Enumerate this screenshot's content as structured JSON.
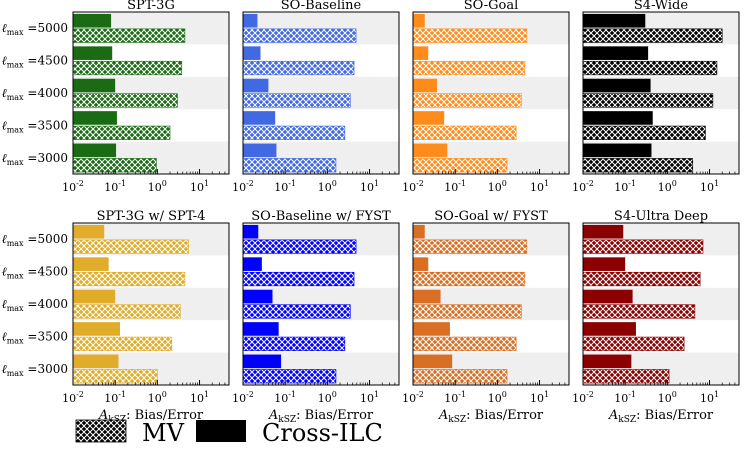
{
  "legend": {
    "mv_label": "MV",
    "ilc_label": "Cross-ILC"
  },
  "chart_data": [
    {
      "type": "bar",
      "orientation": "horizontal",
      "title": "SPT-3G",
      "color": "#1a6b14",
      "xscale": "log",
      "xlim": [
        0.01,
        50
      ],
      "xticks": [
        "10^-2",
        "10^-1",
        "10^0",
        "10^1"
      ],
      "xlabel": "",
      "categories": [
        "5000",
        "4500",
        "4000",
        "3500",
        "3000"
      ],
      "category_prefix": "ℓ",
      "category_sub": "max",
      "series": [
        {
          "name": "Cross-ILC",
          "values": [
            0.08,
            0.085,
            0.1,
            0.11,
            0.105
          ]
        },
        {
          "name": "MV",
          "values": [
            4.5,
            3.8,
            3.0,
            2.0,
            0.95
          ]
        }
      ]
    },
    {
      "type": "bar",
      "orientation": "horizontal",
      "title": "SO-Baseline",
      "color": "#4169e1",
      "xscale": "log",
      "xlim": [
        0.01,
        50
      ],
      "xticks": [
        "10^-2",
        "10^-1",
        "10^0",
        "10^1"
      ],
      "xlabel": "",
      "categories": [
        "5000",
        "4500",
        "4000",
        "3500",
        "3000"
      ],
      "series": [
        {
          "name": "Cross-ILC",
          "values": [
            0.022,
            0.026,
            0.04,
            0.058,
            0.062
          ]
        },
        {
          "name": "MV",
          "values": [
            4.8,
            4.3,
            3.5,
            2.6,
            1.6
          ]
        }
      ]
    },
    {
      "type": "bar",
      "orientation": "horizontal",
      "title": "SO-Goal",
      "color": "#ff8c1a",
      "xscale": "log",
      "xlim": [
        0.01,
        50
      ],
      "xticks": [
        "10^-2",
        "10^-1",
        "10^0",
        "10^1"
      ],
      "xlabel": "",
      "categories": [
        "5000",
        "4500",
        "4000",
        "3500",
        "3000"
      ],
      "series": [
        {
          "name": "Cross-ILC",
          "values": [
            0.019,
            0.023,
            0.037,
            0.055,
            0.065
          ]
        },
        {
          "name": "MV",
          "values": [
            5.0,
            4.5,
            3.7,
            2.8,
            1.7
          ]
        }
      ]
    },
    {
      "type": "bar",
      "orientation": "horizontal",
      "title": "S4-Wide",
      "color": "#000000",
      "xscale": "log",
      "xlim": [
        0.01,
        50
      ],
      "xticks": [
        "10^-2",
        "10^-1",
        "10^0",
        "10^1"
      ],
      "xlabel": "",
      "categories": [
        "5000",
        "4500",
        "4000",
        "3500",
        "3000"
      ],
      "series": [
        {
          "name": "Cross-ILC",
          "values": [
            0.3,
            0.35,
            0.4,
            0.45,
            0.42
          ]
        },
        {
          "name": "MV",
          "values": [
            20.0,
            15.0,
            12.0,
            8.0,
            4.0
          ]
        }
      ]
    },
    {
      "type": "bar",
      "orientation": "horizontal",
      "title": "SPT-3G w/ SPT-4",
      "color": "#e0ac2a",
      "xscale": "log",
      "xlim": [
        0.01,
        50
      ],
      "xticks": [
        "10^-2",
        "10^-1",
        "10^0",
        "10^1"
      ],
      "xlabel": "A_kSZ: Bias/Error",
      "categories": [
        "5000",
        "4500",
        "4000",
        "3500",
        "3000"
      ],
      "series": [
        {
          "name": "Cross-ILC",
          "values": [
            0.055,
            0.07,
            0.1,
            0.13,
            0.12
          ]
        },
        {
          "name": "MV",
          "values": [
            5.5,
            4.5,
            3.5,
            2.2,
            1.0
          ]
        }
      ]
    },
    {
      "type": "bar",
      "orientation": "horizontal",
      "title": "SO-Baseline w/ FYST",
      "color": "#0000ff",
      "xscale": "log",
      "xlim": [
        0.01,
        50
      ],
      "xticks": [
        "10^-2",
        "10^-1",
        "10^0",
        "10^1"
      ],
      "xlabel": "A_kSZ: Bias/Error",
      "categories": [
        "5000",
        "4500",
        "4000",
        "3500",
        "3000"
      ],
      "series": [
        {
          "name": "Cross-ILC",
          "values": [
            0.023,
            0.028,
            0.05,
            0.07,
            0.08
          ]
        },
        {
          "name": "MV",
          "values": [
            4.8,
            4.3,
            3.5,
            2.6,
            1.6
          ]
        }
      ]
    },
    {
      "type": "bar",
      "orientation": "horizontal",
      "title": "SO-Goal w/ FYST",
      "color": "#d96f25",
      "xscale": "log",
      "xlim": [
        0.01,
        50
      ],
      "xticks": [
        "10^-2",
        "10^-1",
        "10^0",
        "10^1"
      ],
      "xlabel": "A_kSZ: Bias/Error",
      "categories": [
        "5000",
        "4500",
        "4000",
        "3500",
        "3000"
      ],
      "series": [
        {
          "name": "Cross-ILC",
          "values": [
            0.019,
            0.023,
            0.045,
            0.075,
            0.085
          ]
        },
        {
          "name": "MV",
          "values": [
            5.0,
            4.5,
            3.7,
            2.8,
            1.7
          ]
        }
      ]
    },
    {
      "type": "bar",
      "orientation": "horizontal",
      "title": "S4-Ultra Deep",
      "color": "#8b0000",
      "xscale": "log",
      "xlim": [
        0.01,
        50
      ],
      "xticks": [
        "10^-2",
        "10^-1",
        "10^0",
        "10^1"
      ],
      "xlabel": "A_kSZ: Bias/Error",
      "categories": [
        "5000",
        "4500",
        "4000",
        "3500",
        "3000"
      ],
      "series": [
        {
          "name": "Cross-ILC",
          "values": [
            0.09,
            0.1,
            0.15,
            0.18,
            0.14
          ]
        },
        {
          "name": "MV",
          "values": [
            7.0,
            6.0,
            4.5,
            2.5,
            1.1
          ]
        }
      ]
    }
  ]
}
